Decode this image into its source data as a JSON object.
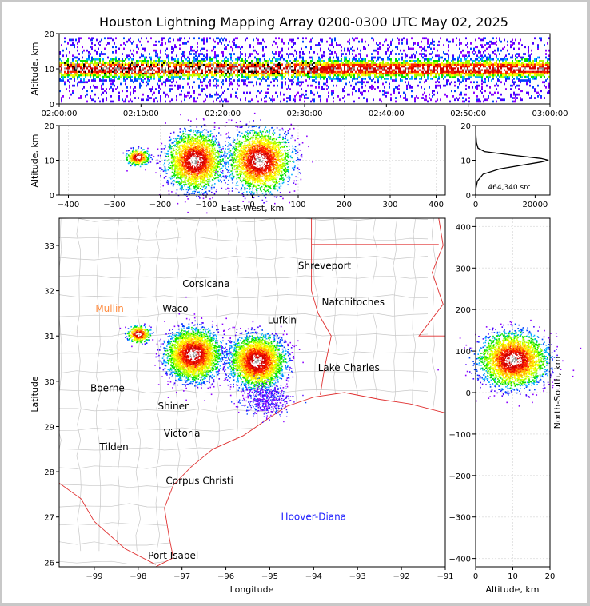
{
  "title": "Houston Lightning Mapping Array 0200-0300 UTC May 02, 2025",
  "chart_data": [
    {
      "id": "altitude-time",
      "type": "scatter",
      "ylabel": "Altitude, km",
      "xlim": [
        "02:00:00",
        "03:00:00"
      ],
      "ylim": [
        0,
        20
      ],
      "xticks": [
        "02:00:00",
        "02:10:00",
        "02:20:00",
        "02:30:00",
        "02:40:00",
        "02:50:00",
        "03:00:00"
      ],
      "yticks": [
        0,
        10,
        20
      ],
      "description_of_density": "continuous band of sources from 1 to 17 km altitude, densest 8-12 km, throughout the hour"
    },
    {
      "id": "altitude-eastwest",
      "type": "scatter",
      "xlabel": "East-West, km",
      "ylabel": "Altitude, km",
      "xlim": [
        -420,
        420
      ],
      "ylim": [
        0,
        20
      ],
      "xticks": [
        -400,
        -300,
        -200,
        -100,
        0,
        100,
        200,
        300,
        400
      ],
      "yticks": [
        0,
        10,
        20
      ],
      "clusters": [
        {
          "x_center": -250,
          "x_range": [
            -270,
            -220
          ],
          "alt_center": 11,
          "alt_range": [
            9,
            14
          ]
        },
        {
          "x_center": -125,
          "x_range": [
            -180,
            -60
          ],
          "alt_center": 10,
          "alt_range": [
            1,
            19
          ]
        },
        {
          "x_center": 15,
          "x_range": [
            -45,
            90
          ],
          "alt_center": 10,
          "alt_range": [
            0,
            19
          ]
        }
      ]
    },
    {
      "id": "altitude-histogram",
      "type": "line",
      "xlim": [
        0,
        25000
      ],
      "ylim": [
        0,
        20
      ],
      "xticks": [
        0,
        20000
      ],
      "yticks": [
        0,
        10,
        20
      ],
      "annotation": "464,340 src",
      "series": [
        {
          "x": [
            0,
            100,
            600,
            2500,
            8000,
            15000,
            22000,
            24500,
            22000,
            12000,
            3000,
            800,
            300,
            100,
            0
          ],
          "y": [
            0,
            2,
            4,
            6,
            7.5,
            8.5,
            9.5,
            10,
            10.5,
            11.5,
            12.5,
            13.5,
            15,
            17,
            20
          ]
        }
      ]
    },
    {
      "id": "plan-view-map",
      "type": "scatter",
      "xlabel": "Longitude",
      "ylabel": "Latitude",
      "xlim": [
        -99.8,
        -91
      ],
      "ylim": [
        25.9,
        33.6
      ],
      "xticks": [
        -99,
        -98,
        -97,
        -96,
        -95,
        -94,
        -93,
        -92,
        -91
      ],
      "yticks": [
        26,
        27,
        28,
        29,
        30,
        31,
        32,
        33
      ],
      "clusters": [
        {
          "lon": -98.0,
          "lat": 31.05,
          "size": "small"
        },
        {
          "lon": -96.75,
          "lat": 30.6,
          "size": "large"
        },
        {
          "lon": -95.3,
          "lat": 30.45,
          "size": "large"
        },
        {
          "lon": -95.1,
          "lat": 29.6,
          "size": "scatter"
        }
      ],
      "cities": [
        {
          "name": "Shreveport",
          "lon": -93.75,
          "lat": 32.55
        },
        {
          "name": "Corsicana",
          "lon": -96.45,
          "lat": 32.15
        },
        {
          "name": "Natchitoches",
          "lon": -93.1,
          "lat": 31.75
        },
        {
          "name": "Mullin",
          "lon": -98.65,
          "lat": 31.6,
          "color": "#ff8c40"
        },
        {
          "name": "Waco",
          "lon": -97.15,
          "lat": 31.6
        },
        {
          "name": "Lufkin",
          "lon": -94.72,
          "lat": 31.35
        },
        {
          "name": "Lake Charles",
          "lon": -93.2,
          "lat": 30.3
        },
        {
          "name": "Boerne",
          "lon": -98.7,
          "lat": 29.85
        },
        {
          "name": "Shiner",
          "lon": -97.2,
          "lat": 29.45
        },
        {
          "name": "Victoria",
          "lon": -97.0,
          "lat": 28.85
        },
        {
          "name": "Tilden",
          "lon": -98.55,
          "lat": 28.55
        },
        {
          "name": "Corpus Christi",
          "lon": -96.6,
          "lat": 27.8
        },
        {
          "name": "Hoover-Diana",
          "lon": -94.0,
          "lat": 27.0,
          "color": "#2222ff"
        },
        {
          "name": "Port Isabel",
          "lon": -97.2,
          "lat": 26.15
        }
      ]
    },
    {
      "id": "northsouth-altitude",
      "type": "scatter",
      "xlabel": "Altitude, km",
      "ylabel": "North-South, km",
      "xlim": [
        0,
        20
      ],
      "ylim": [
        -420,
        420
      ],
      "xticks": [
        0,
        10,
        20
      ],
      "yticks": [
        -400,
        -300,
        -200,
        -100,
        0,
        100,
        200,
        300,
        400
      ],
      "clusters": [
        {
          "alt_center": 10,
          "alt_range": [
            1,
            20
          ],
          "ns_center": 80,
          "ns_range": [
            30,
            160
          ]
        }
      ]
    }
  ]
}
